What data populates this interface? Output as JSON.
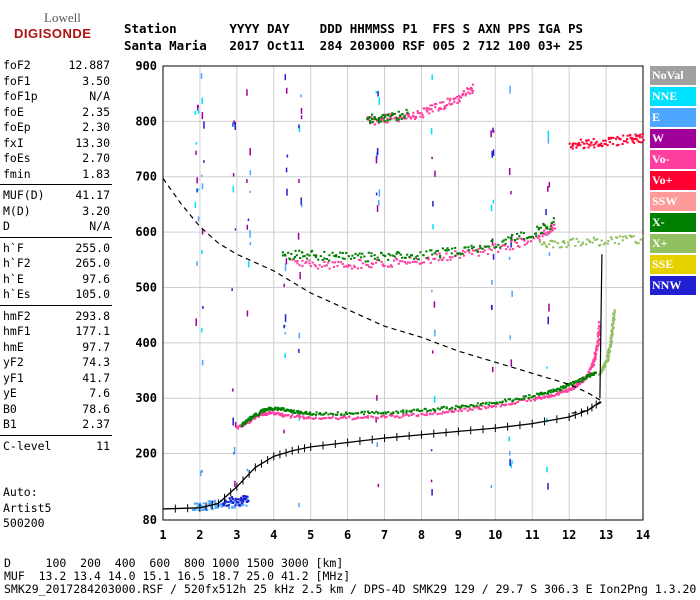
{
  "logo": {
    "line1": "Lowell",
    "line2": "DIGISONDE"
  },
  "header": {
    "labels": "Station       YYYY DAY    DDD HHMMSS P1  FFS S AXN PPS IGA PS",
    "values": "Santa Maria   2017 Oct11  284 203000 RSF 005 2 712 100 03+ 25"
  },
  "params": {
    "group1": [
      {
        "k": "foF2",
        "v": "12.887"
      },
      {
        "k": "foF1",
        "v": "3.50"
      },
      {
        "k": "foF1p",
        "v": "N/A"
      },
      {
        "k": "foE",
        "v": "2.35"
      },
      {
        "k": "foEp",
        "v": "2.30"
      },
      {
        "k": "fxI",
        "v": "13.30"
      },
      {
        "k": "foEs",
        "v": "2.70"
      },
      {
        "k": "fmin",
        "v": "1.83"
      }
    ],
    "group2": [
      {
        "k": "MUF(D)",
        "v": "41.17"
      },
      {
        "k": "M(D)",
        "v": "3.20"
      },
      {
        "k": "D",
        "v": "N/A"
      }
    ],
    "group3": [
      {
        "k": "h`F",
        "v": "255.0"
      },
      {
        "k": "h`F2",
        "v": "265.0"
      },
      {
        "k": "h`E",
        "v": "97.6"
      },
      {
        "k": "h`Es",
        "v": "105.0"
      }
    ],
    "group4": [
      {
        "k": "hmF2",
        "v": "293.8"
      },
      {
        "k": "hmF1",
        "v": "177.1"
      },
      {
        "k": "hmE",
        "v": "97.7"
      },
      {
        "k": "yF2",
        "v": "74.3"
      },
      {
        "k": "yF1",
        "v": "41.7"
      },
      {
        "k": "yE",
        "v": "7.6"
      },
      {
        "k": "B0",
        "v": "78.6"
      },
      {
        "k": "B1",
        "v": "2.37"
      }
    ],
    "group5": [
      {
        "k": "C-level",
        "v": "11"
      }
    ]
  },
  "auto": {
    "line1": "Auto:",
    "line2": "Artist5",
    "line3": "500200"
  },
  "legend": [
    {
      "label": "NoVal",
      "color": "#a0a0a0"
    },
    {
      "label": "NNE",
      "color": "#00e0ff"
    },
    {
      "label": "E",
      "color": "#4da6ff"
    },
    {
      "label": "W",
      "color": "#a0009a"
    },
    {
      "label": "Vo-",
      "color": "#ff3fa0"
    },
    {
      "label": "Vo+",
      "color": "#ff0030"
    },
    {
      "label": "SSW",
      "color": "#ff9a9a"
    },
    {
      "label": "X-",
      "color": "#008000"
    },
    {
      "label": "X+",
      "color": "#90c060"
    },
    {
      "label": "SSE",
      "color": "#e6d000"
    },
    {
      "label": "NNW",
      "color": "#2020d0"
    }
  ],
  "footer": {
    "line1": "D     100  200  400  600  800 1000 1500 3000 [km]",
    "line2": "MUF  13.2 13.4 14.0 15.1 16.5 18.7 25.0 41.2 [MHz]",
    "line3": "SMK29_2017284203000.RSF / 520fx512h 25 kHz 2.5 km / DPS-4D SMK29 129 / 29.7 S 306.3 E Ion2Png 1.3.20"
  },
  "chart_data": {
    "type": "scatter",
    "xlabel": "",
    "ylabel": "",
    "xlim": [
      1,
      14
    ],
    "ylim": [
      80,
      900
    ],
    "xticks": [
      1,
      2,
      3,
      4,
      5,
      6,
      7,
      8,
      9,
      10,
      11,
      12,
      13,
      14
    ],
    "yticks": [
      80,
      200,
      300,
      400,
      500,
      600,
      700,
      800,
      900
    ],
    "grid": true,
    "series": [
      {
        "name": "Vo-",
        "color": "#ff3fa0",
        "kind": "trace",
        "points": [
          [
            3.0,
            248
          ],
          [
            3.3,
            260
          ],
          [
            3.6,
            272
          ],
          [
            3.9,
            276
          ],
          [
            4.3,
            270
          ],
          [
            5,
            266
          ],
          [
            6,
            266
          ],
          [
            7,
            268
          ],
          [
            8,
            272
          ],
          [
            9,
            280
          ],
          [
            10,
            288
          ],
          [
            11,
            300
          ],
          [
            11.5,
            306
          ],
          [
            12,
            318
          ],
          [
            12.3,
            330
          ],
          [
            12.5,
            345
          ],
          [
            12.65,
            370
          ],
          [
            12.75,
            400
          ],
          [
            12.8,
            440
          ]
        ]
      },
      {
        "name": "X-",
        "color": "#008000",
        "kind": "trace",
        "points": [
          [
            3.1,
            252
          ],
          [
            3.4,
            268
          ],
          [
            3.7,
            280
          ],
          [
            4.0,
            284
          ],
          [
            4.5,
            278
          ],
          [
            5,
            274
          ],
          [
            6,
            274
          ],
          [
            7,
            276
          ],
          [
            8,
            280
          ],
          [
            9,
            286
          ],
          [
            10,
            294
          ],
          [
            11,
            306
          ],
          [
            11.6,
            316
          ],
          [
            12,
            326
          ],
          [
            12.4,
            338
          ],
          [
            12.7,
            348
          ]
        ]
      },
      {
        "name": "X+",
        "color": "#90c060",
        "kind": "trace",
        "points": [
          [
            12.8,
            346
          ],
          [
            13.0,
            370
          ],
          [
            13.1,
            400
          ],
          [
            13.15,
            430
          ],
          [
            13.2,
            460
          ]
        ]
      },
      {
        "name": "Vo-",
        "color": "#ff3fa0",
        "kind": "band",
        "points": [
          [
            4.5,
            548
          ],
          [
            5.5,
            542
          ],
          [
            6.5,
            545
          ],
          [
            7.5,
            548
          ],
          [
            8.5,
            556
          ],
          [
            9.5,
            565
          ],
          [
            10.5,
            580
          ],
          [
            11.2,
            595
          ],
          [
            11.6,
            612
          ]
        ]
      },
      {
        "name": "X-",
        "color": "#008000",
        "kind": "band",
        "points": [
          [
            4.2,
            560
          ],
          [
            5,
            560
          ],
          [
            6,
            556
          ],
          [
            7,
            557
          ],
          [
            8,
            560
          ],
          [
            9,
            568
          ],
          [
            10,
            580
          ],
          [
            11,
            600
          ],
          [
            11.6,
            620
          ]
        ]
      },
      {
        "name": "X+",
        "color": "#90c060",
        "kind": "band",
        "points": [
          [
            11.2,
            578
          ],
          [
            12,
            582
          ],
          [
            13,
            586
          ],
          [
            14,
            588
          ]
        ]
      },
      {
        "name": "Vo-",
        "color": "#ff3fa0",
        "kind": "band",
        "points": [
          [
            6.5,
            802
          ],
          [
            7,
            806
          ],
          [
            7.5,
            810
          ],
          [
            8,
            816
          ],
          [
            8.5,
            830
          ],
          [
            9,
            845
          ],
          [
            9.4,
            862
          ]
        ]
      },
      {
        "name": "X-",
        "color": "#008000",
        "kind": "band",
        "points": [
          [
            6.5,
            806
          ],
          [
            7,
            808
          ],
          [
            7.6,
            816
          ]
        ]
      },
      {
        "name": "Vo+",
        "color": "#ff0030",
        "kind": "band",
        "points": [
          [
            12,
            760
          ],
          [
            12.5,
            762
          ],
          [
            13,
            764
          ],
          [
            13.6,
            770
          ],
          [
            14,
            772
          ]
        ]
      },
      {
        "name": "E",
        "color": "#4da6ff",
        "kind": "band",
        "points": [
          [
            1.8,
            106
          ],
          [
            2.2,
            108
          ],
          [
            2.6,
            110
          ],
          [
            3.0,
            112
          ],
          [
            3.3,
            116
          ]
        ]
      },
      {
        "name": "NNW",
        "color": "#2020d0",
        "kind": "band",
        "points": [
          [
            2.6,
            114
          ],
          [
            3.0,
            116
          ],
          [
            3.3,
            118
          ]
        ]
      }
    ],
    "true_height_profile": [
      [
        1,
        100
      ],
      [
        2,
        102
      ],
      [
        2.5,
        110
      ],
      [
        3,
        140
      ],
      [
        3.5,
        175
      ],
      [
        4,
        195
      ],
      [
        4.5,
        205
      ],
      [
        5,
        212
      ],
      [
        6,
        220
      ],
      [
        7,
        228
      ],
      [
        8,
        234
      ],
      [
        9,
        240
      ],
      [
        10,
        246
      ],
      [
        11,
        254
      ],
      [
        12,
        266
      ],
      [
        12.5,
        278
      ],
      [
        12.85,
        294
      ]
    ],
    "dashed_profile": [
      [
        1,
        697
      ],
      [
        1.5,
        650
      ],
      [
        2,
        610
      ],
      [
        2.5,
        580
      ],
      [
        3,
        560
      ],
      [
        4,
        530
      ],
      [
        5,
        490
      ],
      [
        6,
        460
      ],
      [
        7,
        430
      ],
      [
        8,
        410
      ],
      [
        9,
        385
      ],
      [
        10,
        365
      ],
      [
        11,
        345
      ],
      [
        12,
        325
      ],
      [
        12.5,
        310
      ],
      [
        12.9,
        294
      ],
      [
        12.5,
        278
      ],
      [
        12,
        272
      ]
    ],
    "fo_f2_vertical_line": 12.887
  }
}
